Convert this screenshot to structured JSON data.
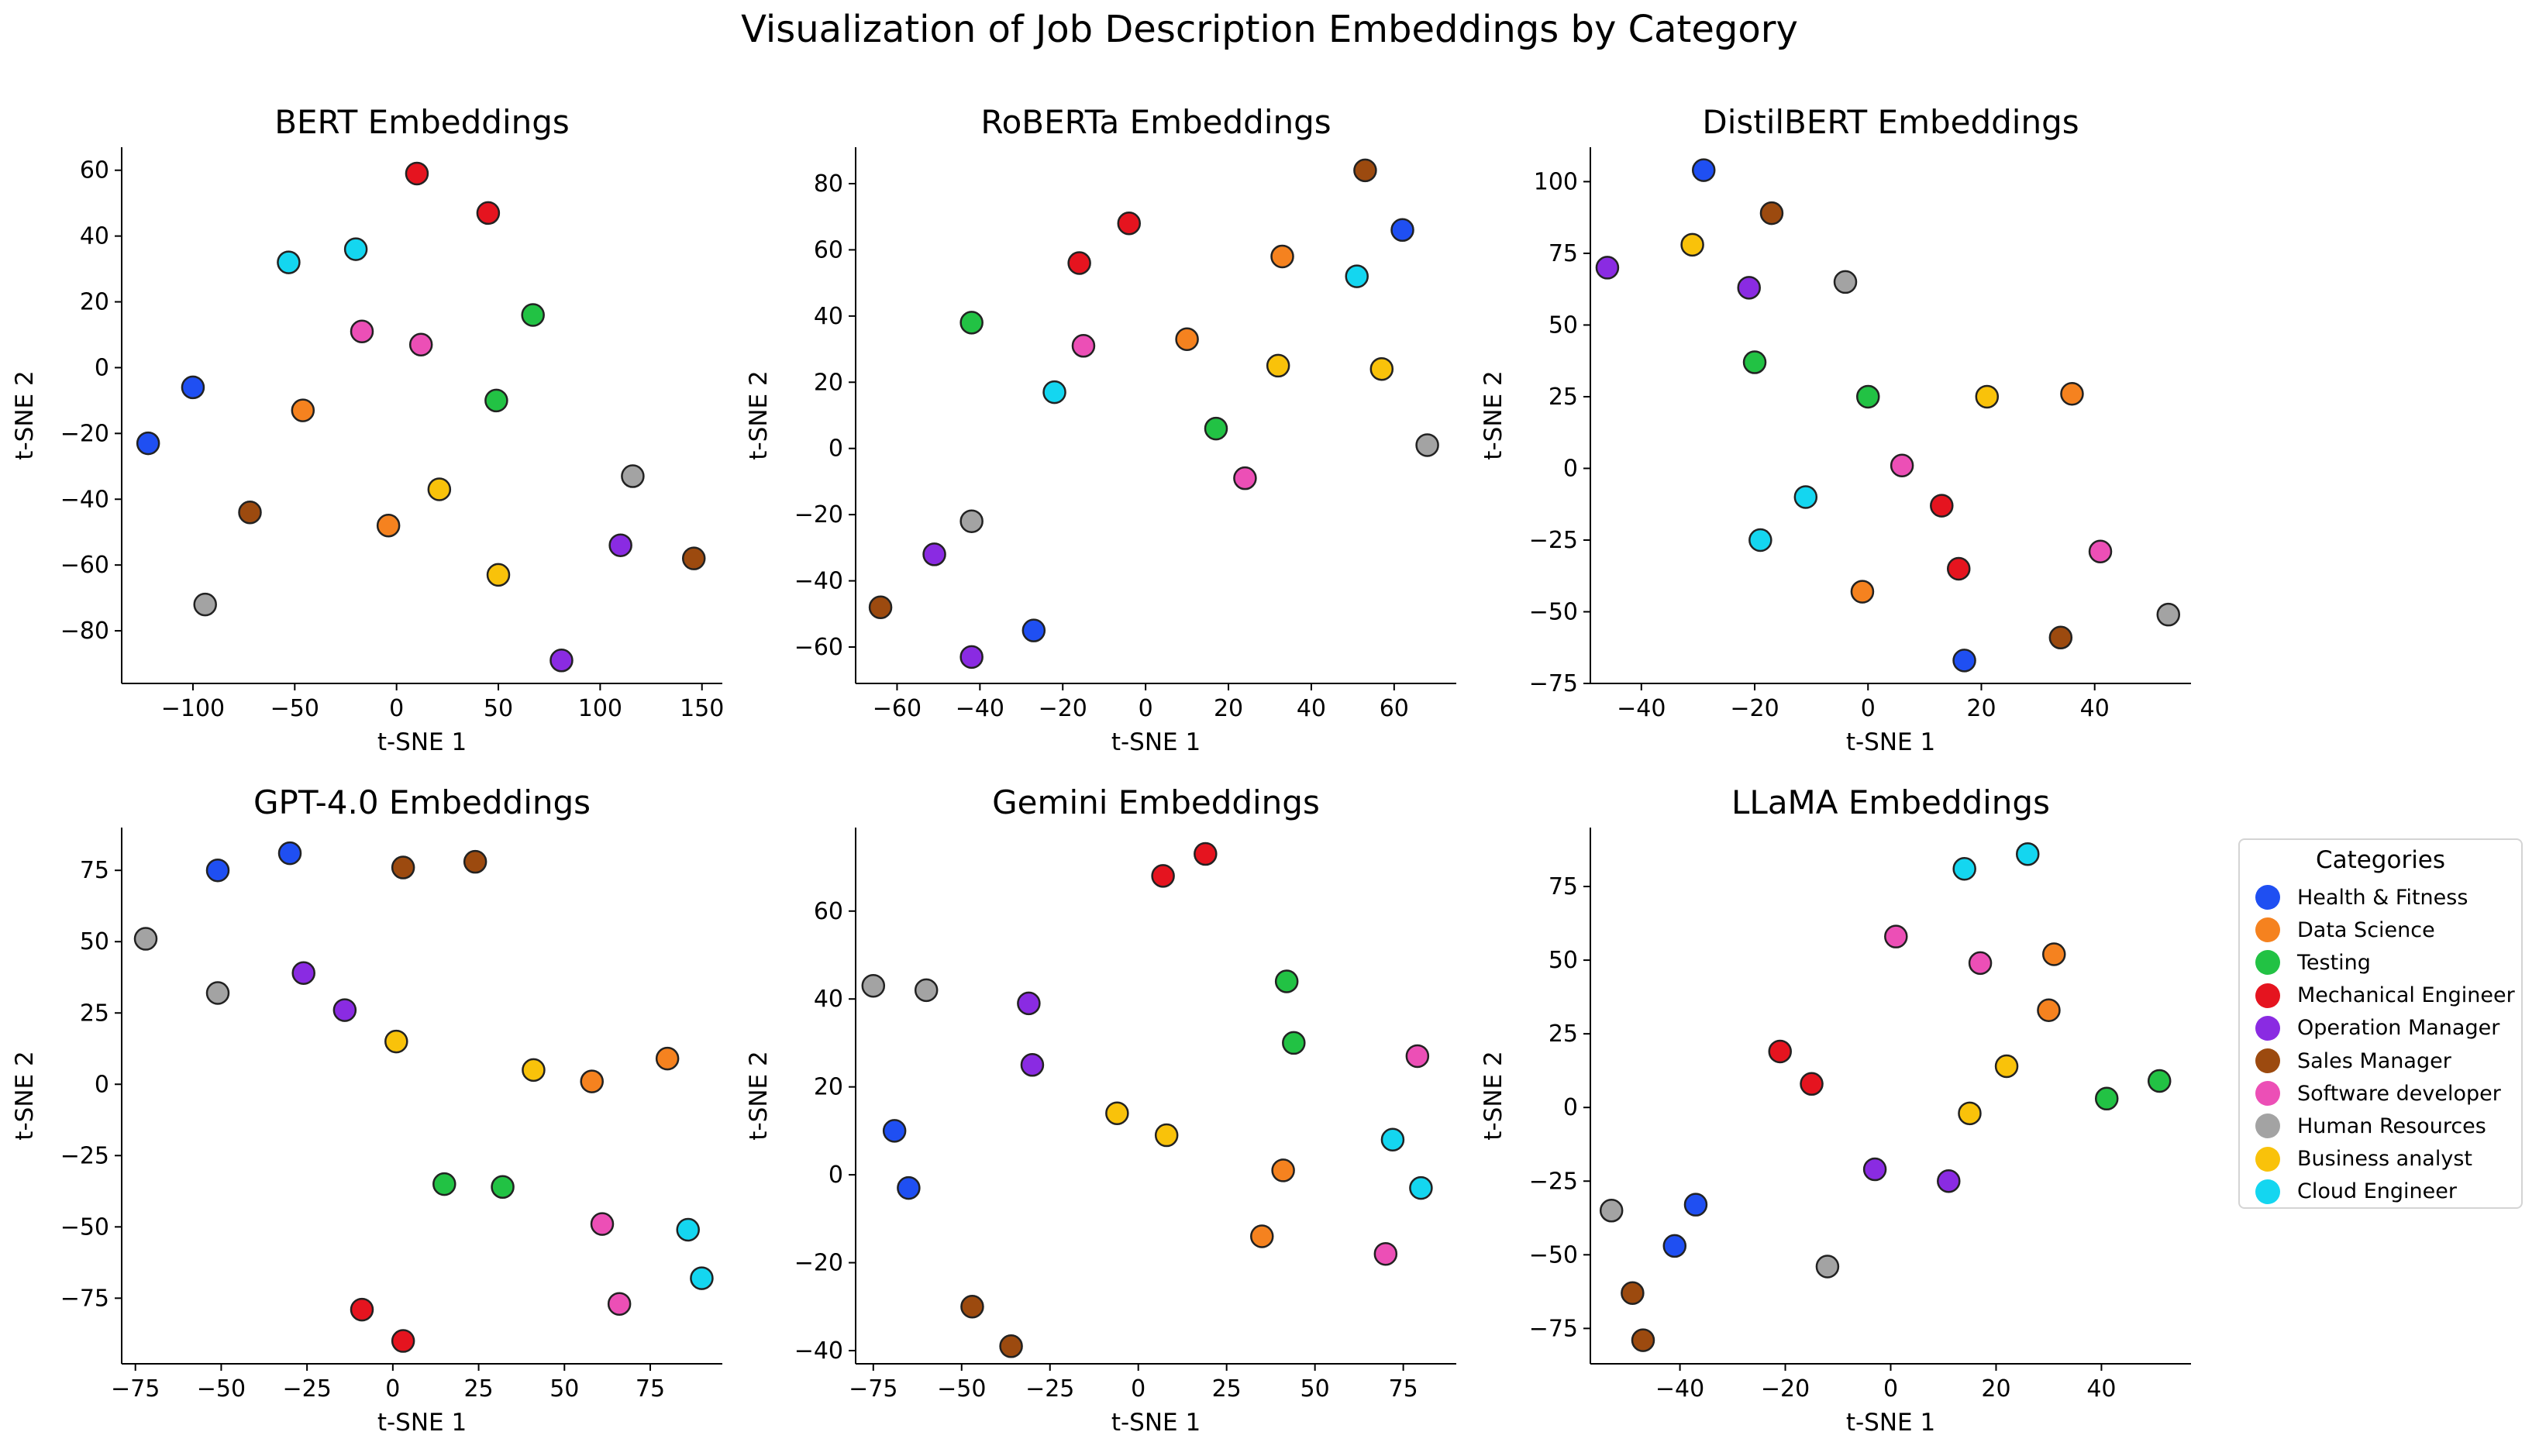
{
  "figure": {
    "suptitle": "Visualization of Job Description Embeddings by Category"
  },
  "legend": {
    "title": "Categories",
    "items": [
      {
        "label": "Health & Fitness",
        "color": "#1f4ff2"
      },
      {
        "label": "Data Science",
        "color": "#f5821f"
      },
      {
        "label": "Testing",
        "color": "#22c244"
      },
      {
        "label": "Mechanical Engineer",
        "color": "#e5141f"
      },
      {
        "label": "Operation Manager",
        "color": "#8a2be2"
      },
      {
        "label": "Sales Manager",
        "color": "#9c4a0f"
      },
      {
        "label": "Software developer",
        "color": "#ec4fb6"
      },
      {
        "label": "Human Resources",
        "color": "#a3a3a3"
      },
      {
        "label": "Business analyst",
        "color": "#f9c20a"
      },
      {
        "label": "Cloud Engineer",
        "color": "#14d6f0"
      }
    ]
  },
  "chart_data": [
    {
      "type": "scatter",
      "title": "BERT Embeddings",
      "xlabel": "t-SNE 1",
      "ylabel": "t-SNE 2",
      "xlim": [
        -135,
        160
      ],
      "ylim": [
        -96,
        67
      ],
      "xticks": [
        -100,
        -50,
        0,
        50,
        100,
        150
      ],
      "yticks": [
        -80,
        -60,
        -40,
        -20,
        0,
        20,
        40,
        60
      ],
      "series": [
        {
          "name": "Health & Fitness",
          "points": [
            [
              -122,
              -23
            ],
            [
              -100,
              -6
            ]
          ]
        },
        {
          "name": "Data Science",
          "points": [
            [
              -46,
              -13
            ],
            [
              -4,
              -48
            ]
          ]
        },
        {
          "name": "Testing",
          "points": [
            [
              67,
              16
            ],
            [
              49,
              -10
            ]
          ]
        },
        {
          "name": "Mechanical Engineer",
          "points": [
            [
              10,
              59
            ],
            [
              45,
              47
            ]
          ]
        },
        {
          "name": "Operation Manager",
          "points": [
            [
              110,
              -54
            ],
            [
              81,
              -89
            ]
          ]
        },
        {
          "name": "Sales Manager",
          "points": [
            [
              -72,
              -44
            ],
            [
              146,
              -58
            ]
          ]
        },
        {
          "name": "Software developer",
          "points": [
            [
              -17,
              11
            ],
            [
              12,
              7
            ]
          ]
        },
        {
          "name": "Human Resources",
          "points": [
            [
              116,
              -33
            ],
            [
              -94,
              -72
            ]
          ]
        },
        {
          "name": "Business analyst",
          "points": [
            [
              21,
              -37
            ],
            [
              50,
              -63
            ]
          ]
        },
        {
          "name": "Cloud Engineer",
          "points": [
            [
              -53,
              32
            ],
            [
              -20,
              36
            ]
          ]
        }
      ]
    },
    {
      "type": "scatter",
      "title": "RoBERTa Embeddings",
      "xlabel": "t-SNE 1",
      "ylabel": "t-SNE 2",
      "xlim": [
        -70,
        75
      ],
      "ylim": [
        -71,
        91
      ],
      "xticks": [
        -60,
        -40,
        -20,
        0,
        20,
        40,
        60
      ],
      "yticks": [
        -60,
        -40,
        -20,
        0,
        20,
        40,
        60,
        80
      ],
      "series": [
        {
          "name": "Health & Fitness",
          "points": [
            [
              62,
              66
            ],
            [
              -27,
              -55
            ]
          ]
        },
        {
          "name": "Data Science",
          "points": [
            [
              33,
              58
            ],
            [
              10,
              33
            ]
          ]
        },
        {
          "name": "Testing",
          "points": [
            [
              -42,
              38
            ],
            [
              17,
              6
            ]
          ]
        },
        {
          "name": "Mechanical Engineer",
          "points": [
            [
              -4,
              68
            ],
            [
              -16,
              56
            ]
          ]
        },
        {
          "name": "Operation Manager",
          "points": [
            [
              -51,
              -32
            ],
            [
              -42,
              -63
            ]
          ]
        },
        {
          "name": "Sales Manager",
          "points": [
            [
              53,
              84
            ],
            [
              -64,
              -48
            ]
          ]
        },
        {
          "name": "Software developer",
          "points": [
            [
              -15,
              31
            ],
            [
              24,
              -9
            ]
          ]
        },
        {
          "name": "Human Resources",
          "points": [
            [
              68,
              1
            ],
            [
              -42,
              -22
            ]
          ]
        },
        {
          "name": "Business analyst",
          "points": [
            [
              32,
              25
            ],
            [
              57,
              24
            ]
          ]
        },
        {
          "name": "Cloud Engineer",
          "points": [
            [
              51,
              52
            ],
            [
              -22,
              17
            ]
          ]
        }
      ]
    },
    {
      "type": "scatter",
      "title": "DistilBERT Embeddings",
      "xlabel": "t-SNE 1",
      "ylabel": "t-SNE 2",
      "xlim": [
        -49,
        57
      ],
      "ylim": [
        -75,
        112
      ],
      "xticks": [
        -40,
        -20,
        0,
        20,
        40
      ],
      "yticks": [
        -75,
        -50,
        -25,
        0,
        25,
        50,
        75,
        100
      ],
      "series": [
        {
          "name": "Health & Fitness",
          "points": [
            [
              -29,
              104
            ],
            [
              17,
              -67
            ]
          ]
        },
        {
          "name": "Data Science",
          "points": [
            [
              36,
              26
            ],
            [
              -1,
              -43
            ]
          ]
        },
        {
          "name": "Testing",
          "points": [
            [
              -20,
              37
            ],
            [
              0,
              25
            ]
          ]
        },
        {
          "name": "Mechanical Engineer",
          "points": [
            [
              13,
              -13
            ],
            [
              16,
              -35
            ]
          ]
        },
        {
          "name": "Operation Manager",
          "points": [
            [
              -46,
              70
            ],
            [
              -21,
              63
            ]
          ]
        },
        {
          "name": "Sales Manager",
          "points": [
            [
              -17,
              89
            ],
            [
              34,
              -59
            ]
          ]
        },
        {
          "name": "Software developer",
          "points": [
            [
              6,
              1
            ],
            [
              41,
              -29
            ]
          ]
        },
        {
          "name": "Human Resources",
          "points": [
            [
              -4,
              65
            ],
            [
              53,
              -51
            ]
          ]
        },
        {
          "name": "Business analyst",
          "points": [
            [
              -31,
              78
            ],
            [
              21,
              25
            ]
          ]
        },
        {
          "name": "Cloud Engineer",
          "points": [
            [
              -11,
              -10
            ],
            [
              -19,
              -25
            ]
          ]
        }
      ]
    },
    {
      "type": "scatter",
      "title": "GPT-4.0 Embeddings",
      "xlabel": "t-SNE 1",
      "ylabel": "t-SNE 2",
      "xlim": [
        -79,
        96
      ],
      "ylim": [
        -98,
        90
      ],
      "xticks": [
        -75,
        -50,
        -25,
        0,
        25,
        50,
        75
      ],
      "yticks": [
        -75,
        -50,
        -25,
        0,
        25,
        50,
        75
      ],
      "series": [
        {
          "name": "Health & Fitness",
          "points": [
            [
              -51,
              75
            ],
            [
              -30,
              81
            ]
          ]
        },
        {
          "name": "Data Science",
          "points": [
            [
              58,
              1
            ],
            [
              80,
              9
            ]
          ]
        },
        {
          "name": "Testing",
          "points": [
            [
              15,
              -35
            ],
            [
              32,
              -36
            ]
          ]
        },
        {
          "name": "Mechanical Engineer",
          "points": [
            [
              -9,
              -79
            ],
            [
              3,
              -90
            ]
          ]
        },
        {
          "name": "Operation Manager",
          "points": [
            [
              -26,
              39
            ],
            [
              -14,
              26
            ]
          ]
        },
        {
          "name": "Sales Manager",
          "points": [
            [
              3,
              76
            ],
            [
              24,
              78
            ]
          ]
        },
        {
          "name": "Software developer",
          "points": [
            [
              61,
              -49
            ],
            [
              66,
              -77
            ]
          ]
        },
        {
          "name": "Human Resources",
          "points": [
            [
              -72,
              51
            ],
            [
              -51,
              32
            ]
          ]
        },
        {
          "name": "Business analyst",
          "points": [
            [
              1,
              15
            ],
            [
              41,
              5
            ]
          ]
        },
        {
          "name": "Cloud Engineer",
          "points": [
            [
              86,
              -51
            ],
            [
              90,
              -68
            ]
          ]
        }
      ]
    },
    {
      "type": "scatter",
      "title": "Gemini Embeddings",
      "xlabel": "t-SNE 1",
      "ylabel": "t-SNE 2",
      "xlim": [
        -80,
        90
      ],
      "ylim": [
        -43,
        79
      ],
      "xticks": [
        -75,
        -50,
        -25,
        0,
        25,
        50,
        75
      ],
      "yticks": [
        -40,
        -20,
        0,
        20,
        40,
        60
      ],
      "series": [
        {
          "name": "Health & Fitness",
          "points": [
            [
              -69,
              10
            ],
            [
              -65,
              -3
            ]
          ]
        },
        {
          "name": "Data Science",
          "points": [
            [
              41,
              1
            ],
            [
              35,
              -14
            ]
          ]
        },
        {
          "name": "Testing",
          "points": [
            [
              42,
              44
            ],
            [
              44,
              30
            ]
          ]
        },
        {
          "name": "Mechanical Engineer",
          "points": [
            [
              7,
              68
            ],
            [
              19,
              73
            ]
          ]
        },
        {
          "name": "Operation Manager",
          "points": [
            [
              -31,
              39
            ],
            [
              -30,
              25
            ]
          ]
        },
        {
          "name": "Sales Manager",
          "points": [
            [
              -47,
              -30
            ],
            [
              -36,
              -39
            ]
          ]
        },
        {
          "name": "Software developer",
          "points": [
            [
              79,
              27
            ],
            [
              70,
              -18
            ]
          ]
        },
        {
          "name": "Human Resources",
          "points": [
            [
              -75,
              43
            ],
            [
              -60,
              42
            ]
          ]
        },
        {
          "name": "Business analyst",
          "points": [
            [
              -6,
              14
            ],
            [
              8,
              9
            ]
          ]
        },
        {
          "name": "Cloud Engineer",
          "points": [
            [
              72,
              8
            ],
            [
              80,
              -3
            ]
          ]
        }
      ]
    },
    {
      "type": "scatter",
      "title": "LLaMA Embeddings",
      "xlabel": "t-SNE 1",
      "ylabel": "t-SNE 2",
      "xlim": [
        -57,
        57
      ],
      "ylim": [
        -87,
        95
      ],
      "xticks": [
        -40,
        -20,
        0,
        20,
        40
      ],
      "yticks": [
        -75,
        -50,
        -25,
        0,
        25,
        50,
        75
      ],
      "series": [
        {
          "name": "Health & Fitness",
          "points": [
            [
              -37,
              -33
            ],
            [
              -41,
              -47
            ]
          ]
        },
        {
          "name": "Data Science",
          "points": [
            [
              31,
              52
            ],
            [
              30,
              33
            ]
          ]
        },
        {
          "name": "Testing",
          "points": [
            [
              41,
              3
            ],
            [
              51,
              9
            ]
          ]
        },
        {
          "name": "Mechanical Engineer",
          "points": [
            [
              -21,
              19
            ],
            [
              -15,
              8
            ]
          ]
        },
        {
          "name": "Operation Manager",
          "points": [
            [
              -3,
              -21
            ],
            [
              11,
              -25
            ]
          ]
        },
        {
          "name": "Sales Manager",
          "points": [
            [
              -49,
              -63
            ],
            [
              -47,
              -79
            ]
          ]
        },
        {
          "name": "Software developer",
          "points": [
            [
              1,
              58
            ],
            [
              17,
              49
            ]
          ]
        },
        {
          "name": "Human Resources",
          "points": [
            [
              -53,
              -35
            ],
            [
              -12,
              -54
            ]
          ]
        },
        {
          "name": "Business analyst",
          "points": [
            [
              22,
              14
            ],
            [
              15,
              -2
            ]
          ]
        },
        {
          "name": "Cloud Engineer",
          "points": [
            [
              14,
              81
            ],
            [
              26,
              86
            ]
          ]
        }
      ]
    }
  ]
}
